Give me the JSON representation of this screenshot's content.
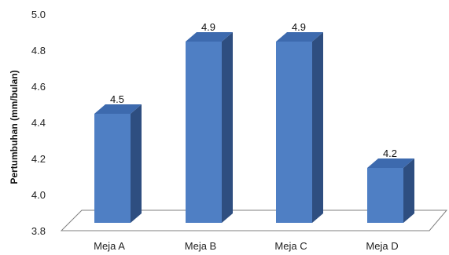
{
  "chart_data": {
    "type": "bar",
    "categories": [
      "Meja A",
      "Meja B",
      "Meja C",
      "Meja D"
    ],
    "values": [
      4.5,
      4.9,
      4.9,
      4.2
    ],
    "data_labels": [
      "4.5",
      "4.9",
      "4.9",
      "4.2"
    ],
    "ylabel": "Pertumbuhan (mm/bulan)",
    "xlabel": "",
    "ylim": [
      3.8,
      5.0
    ],
    "yticks": [
      "3.8",
      "4.0",
      "4.2",
      "4.4",
      "4.6",
      "4.8",
      "5.0"
    ],
    "grid": false,
    "legend": "none",
    "style": "3d-column",
    "colors": {
      "bar_front": "#4F7FC4",
      "bar_side": "#2E4E80",
      "bar_top": "#3D6AAE",
      "floor": "#ffffff",
      "floor_line": "#7f7f7f"
    }
  }
}
